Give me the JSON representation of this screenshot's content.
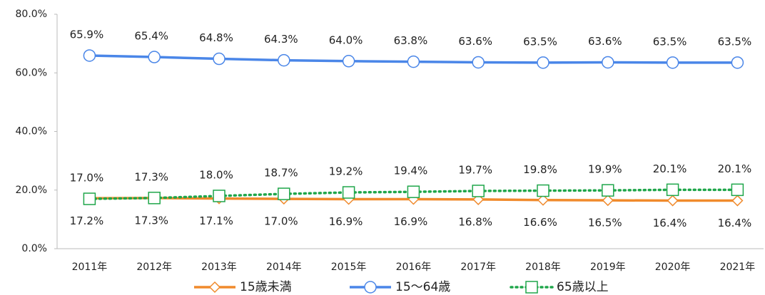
{
  "chart_data": {
    "type": "line",
    "categories": [
      "2011年",
      "2012年",
      "2013年",
      "2014年",
      "2015年",
      "2016年",
      "2017年",
      "2018年",
      "2019年",
      "2020年",
      "2021年"
    ],
    "ylim": [
      0,
      80
    ],
    "yticks": [
      {
        "value": 0,
        "label": "0.0%"
      },
      {
        "value": 20,
        "label": "20.0%"
      },
      {
        "value": 40,
        "label": "40.0%"
      },
      {
        "value": 60,
        "label": "60.0%"
      },
      {
        "value": 80,
        "label": "80.0%"
      }
    ],
    "grid": false,
    "legend": "bottom",
    "series": [
      {
        "name": "15歳未満",
        "color": "#f08a2c",
        "marker": "diamond",
        "linestyle": "solid",
        "label_position": "below",
        "values": [
          17.2,
          17.3,
          17.1,
          17.0,
          16.9,
          16.9,
          16.8,
          16.6,
          16.5,
          16.4,
          16.4
        ],
        "value_labels": [
          "17.2%",
          "17.3%",
          "17.1%",
          "17.0%",
          "16.9%",
          "16.9%",
          "16.8%",
          "16.6%",
          "16.5%",
          "16.4%",
          "16.4%"
        ]
      },
      {
        "name": "15～64歳",
        "color": "#4a86e8",
        "marker": "circle",
        "linestyle": "solid",
        "label_position": "above",
        "values": [
          65.9,
          65.4,
          64.8,
          64.3,
          64.0,
          63.8,
          63.6,
          63.5,
          63.6,
          63.5,
          63.5
        ],
        "value_labels": [
          "65.9%",
          "65.4%",
          "64.8%",
          "64.3%",
          "64.0%",
          "63.8%",
          "63.6%",
          "63.5%",
          "63.6%",
          "63.5%",
          "63.5%"
        ]
      },
      {
        "name": "65歳以上",
        "color": "#1fa64a",
        "marker": "square",
        "linestyle": "dotted",
        "label_position": "above",
        "values": [
          17.0,
          17.3,
          18.0,
          18.7,
          19.2,
          19.4,
          19.7,
          19.8,
          19.9,
          20.1,
          20.1
        ],
        "value_labels": [
          "17.0%",
          "17.3%",
          "18.0%",
          "18.7%",
          "19.2%",
          "19.4%",
          "19.7%",
          "19.8%",
          "19.9%",
          "20.1%",
          "20.1%"
        ]
      }
    ]
  }
}
